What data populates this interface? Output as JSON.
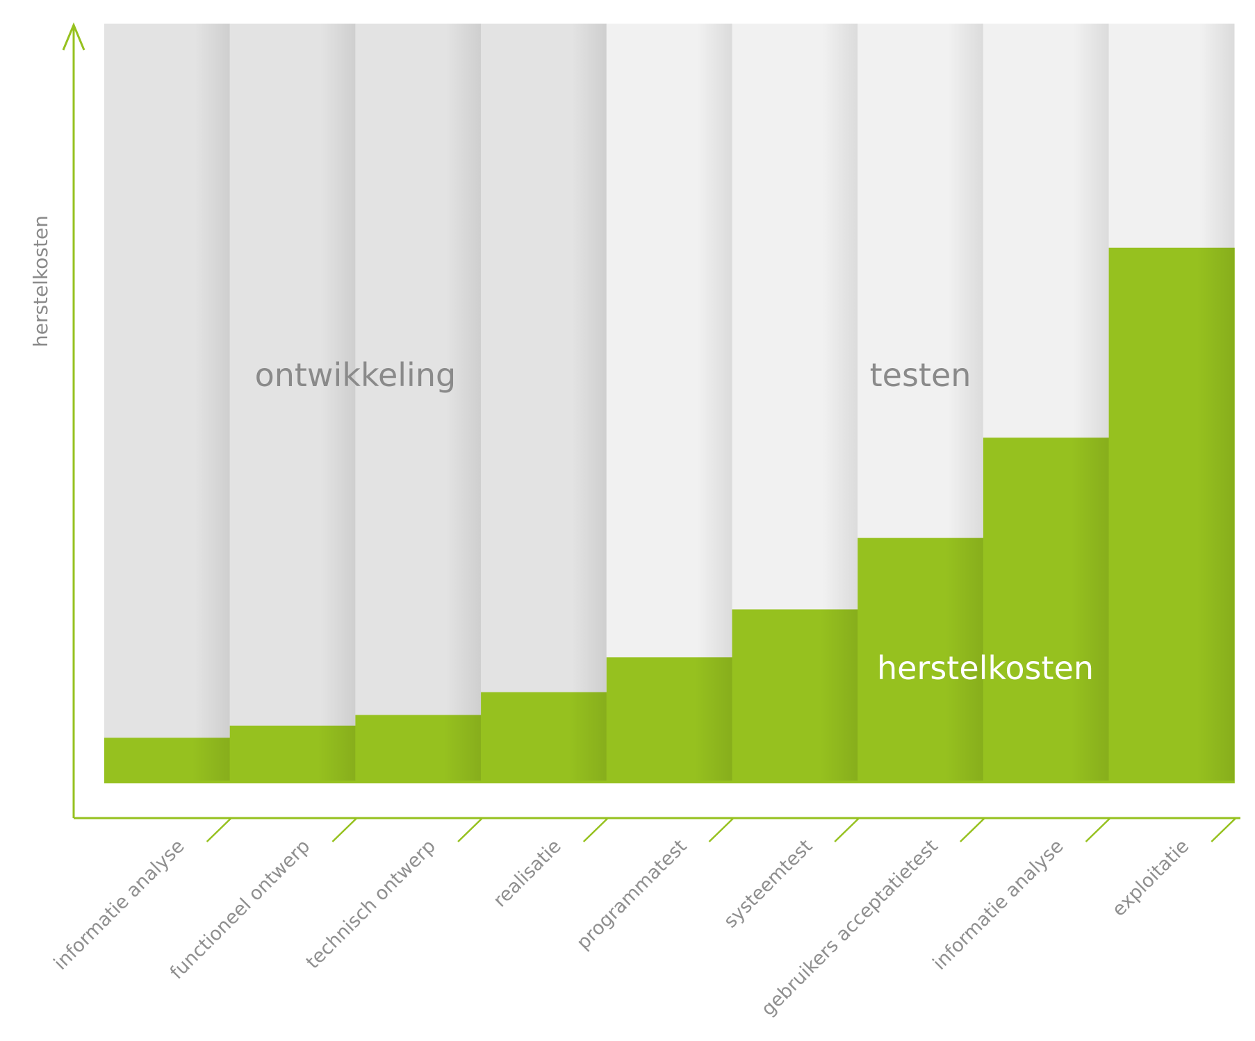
{
  "chart_data": {
    "type": "bar",
    "ylabel": "herstelkosten",
    "categories": [
      "informatie analyse",
      "functioneel ontwerp",
      "technisch ontwerp",
      "realisatie",
      "programmatest",
      "systeemtest",
      "gebruikers acceptatietest",
      "informatie analyse",
      "exploitatie"
    ],
    "series": [
      {
        "name": "herstelkosten",
        "values": [
          6,
          7.6,
          9,
          12,
          16.6,
          22.9,
          32.3,
          45.5,
          70.5
        ]
      }
    ],
    "ylim": [
      0,
      100
    ],
    "phases": [
      {
        "label": "ontwikkeling",
        "start_index": 0,
        "end_index": 3
      },
      {
        "label": "testen",
        "start_index": 4,
        "end_index": 8
      }
    ],
    "grid": false,
    "legend": "none"
  },
  "colors": {
    "bar": "#96c11f",
    "bar_shade": "#86ad1a",
    "phase_ontwikkeling": "#e3e3e3",
    "phase_testen": "#f1f1f1",
    "axis": "#96c11f",
    "text": "#8a8a8a"
  }
}
